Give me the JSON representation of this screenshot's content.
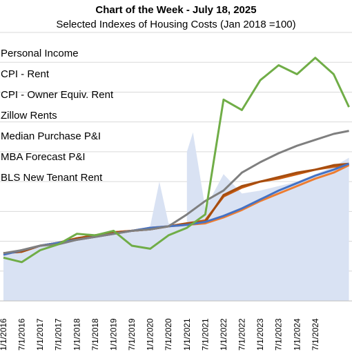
{
  "chart_data": {
    "type": "line",
    "title": "Chart of the Week - July 18, 2025",
    "subtitle": "Selected Indexes of Housing Costs (Jan 2018 =100)",
    "xlabel": "",
    "ylabel": "",
    "ylim": [
      60,
      240
    ],
    "grid": true,
    "legend_placement": "top-left",
    "x_ticks": [
      "1/1/2016",
      "7/1/2016",
      "1/1/2017",
      "7/1/2017",
      "1/1/2018",
      "7/1/2018",
      "1/1/2019",
      "7/1/2019",
      "1/1/2020",
      "7/1/2020",
      "1/1/2021",
      "7/1/2021",
      "1/1/2022",
      "7/1/2022",
      "1/1/2023",
      "7/1/2023",
      "1/1/2024",
      "7/1/2024"
    ],
    "x_dates": [
      "2016-01",
      "2016-07",
      "2017-01",
      "2017-07",
      "2018-01",
      "2018-07",
      "2019-01",
      "2019-07",
      "2020-01",
      "2020-07",
      "2021-01",
      "2021-07",
      "2022-01",
      "2022-07",
      "2023-01",
      "2023-07",
      "2024-01",
      "2024-07",
      "2025-01",
      "2025-06"
    ],
    "series": [
      {
        "name": "Personal Income",
        "style": "area",
        "color": "#d9e2f3",
        "values": [
          91,
          94,
          97,
          99,
          101,
          103,
          105,
          107,
          110,
          112,
          110,
          122,
          145,
          132,
          134,
          137,
          140,
          145,
          150,
          156
        ],
        "spikes": [
          {
            "x": "2020-04",
            "y": 140
          },
          {
            "x": "2021-01",
            "y": 160
          },
          {
            "x": "2021-03",
            "y": 173
          }
        ]
      },
      {
        "name": "CPI - Rent",
        "color": "#4472c4",
        "values": [
          91,
          94,
          97,
          99,
          101,
          103,
          105,
          107,
          109,
          110,
          111,
          113,
          117,
          122,
          128,
          134,
          139,
          144,
          148,
          152
        ]
      },
      {
        "name": "CPI - Owner Equiv. Rent",
        "color": "#ed7d31",
        "values": [
          91,
          94,
          97,
          99,
          101,
          103,
          105,
          107,
          109,
          110,
          111,
          112,
          116,
          121,
          127,
          132,
          137,
          142,
          146,
          151
        ]
      },
      {
        "name": "Zillow Rents",
        "color": "#70ad47",
        "values": [
          89,
          86,
          94,
          98,
          105,
          104,
          107,
          97,
          95,
          104,
          109,
          118,
          195,
          188,
          208,
          218,
          212,
          223,
          212,
          190
        ]
      },
      {
        "name": "Median Purchase P&I",
        "color": "#7f7f7f",
        "values": [
          92,
          94,
          97,
          98,
          101,
          103,
          105,
          107,
          108,
          110,
          118,
          127,
          134,
          146,
          153,
          159,
          164,
          168,
          172,
          174
        ]
      },
      {
        "name": "MBA Forecast P&I",
        "color": "#a64d0f",
        "values": [
          92,
          93,
          97,
          99,
          102,
          104,
          106,
          107,
          108,
          110,
          112,
          113,
          131,
          137,
          140,
          143,
          146,
          148,
          151,
          152
        ]
      },
      {
        "name": "BLS New Tenant Rent",
        "color": "#c55a11",
        "values": [
          92,
          93,
          97,
          99,
          102,
          104,
          106,
          107,
          108,
          110,
          112,
          114,
          130,
          136,
          140,
          142,
          145,
          148,
          150,
          151
        ]
      }
    ]
  }
}
